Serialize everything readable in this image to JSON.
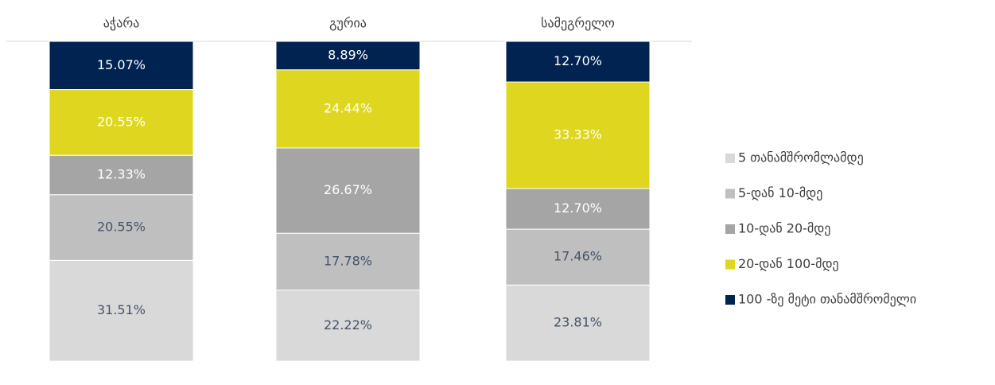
{
  "chart_data": {
    "type": "stacked_bar",
    "categories": [
      "აჭარა",
      "გურია",
      "სამეგრელო"
    ],
    "series": [
      {
        "name": "5 თანამშრომლამდე",
        "color": "#d9d9d9",
        "values": [
          31.51,
          22.22,
          23.81
        ],
        "value_labels": [
          "31.51%",
          "22.22%",
          "23.81%"
        ]
      },
      {
        "name": "5-დან 10-მდე",
        "color": "#bfbfbf",
        "values": [
          20.55,
          17.78,
          17.46
        ],
        "value_labels": [
          "20.55%",
          "17.78%",
          "17.46%"
        ]
      },
      {
        "name": "10-დან 20-მდე",
        "color": "#a5a5a5",
        "values": [
          12.33,
          26.67,
          12.7
        ],
        "value_labels": [
          "12.33%",
          "26.67%",
          "12.70%"
        ]
      },
      {
        "name": "20-დან 100-მდე",
        "color": "#dfd71f",
        "values": [
          20.55,
          24.44,
          33.33
        ],
        "value_labels": [
          "20.55%",
          "24.44%",
          "33.33%"
        ]
      },
      {
        "name": "100 -ზე მეტი თანამშრომელი",
        "color": "#002352",
        "values": [
          15.07,
          8.89,
          12.7
        ],
        "value_labels": [
          "15.07%",
          "8.89%",
          "12.70%"
        ]
      }
    ]
  }
}
